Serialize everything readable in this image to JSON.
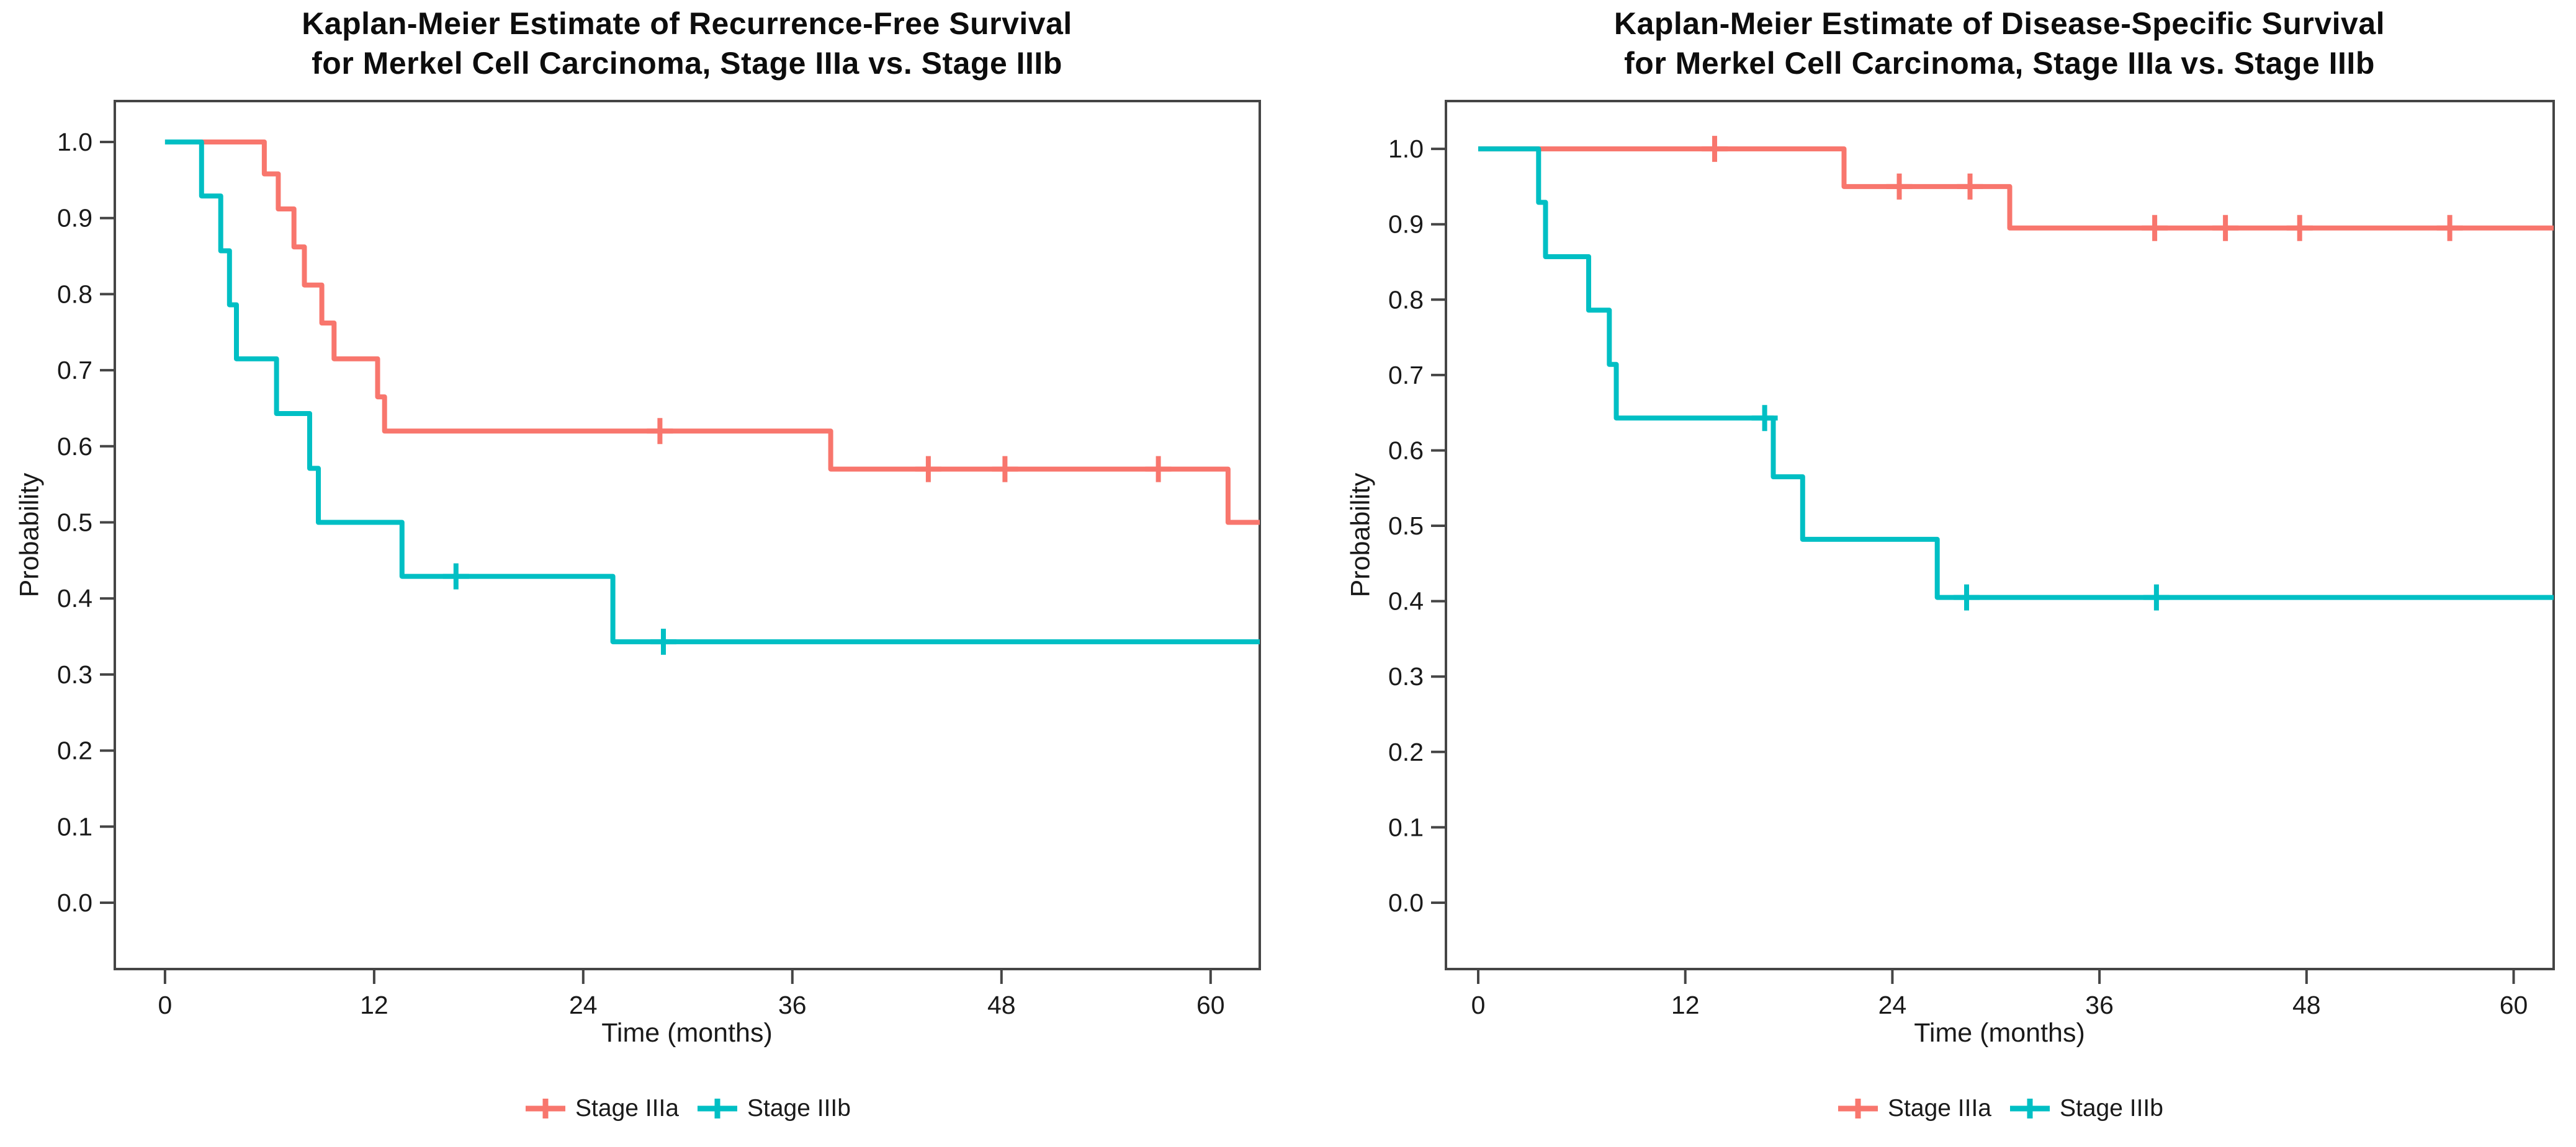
{
  "figure": {
    "background": "#ffffff",
    "description_colors": {
      "stage_iiia": "#F8766D",
      "stage_iiib": "#00BFC4",
      "axis_box": "#454545",
      "text": "#1a1a1a"
    }
  },
  "legend": {
    "items": [
      {
        "label": "Stage IIIa",
        "color": "#F8766D"
      },
      {
        "label": "Stage IIIb",
        "color": "#00BFC4"
      }
    ]
  },
  "chart_data": [
    {
      "type": "line",
      "subtype": "kaplan-meier-step",
      "title_line1": "Kaplan-Meier Estimate of Recurrence-Free Survival",
      "title_line2": "for Merkel Cell Carcinoma, Stage IIIa vs. Stage IIIb",
      "xlabel": "Time (months)",
      "ylabel": "Probability",
      "grid": false,
      "legend_position": "bottom-center",
      "xlim": [
        -2.88,
        62.82
      ],
      "ylim": [
        -0.0872,
        1.0538
      ],
      "xticks": [
        [
          0,
          "0"
        ],
        [
          12,
          "12"
        ],
        [
          24,
          "24"
        ],
        [
          36,
          "36"
        ],
        [
          48,
          "48"
        ],
        [
          60,
          "60"
        ]
      ],
      "yticks": [
        [
          1.0,
          "1.0"
        ],
        [
          0.9,
          "0.9"
        ],
        [
          0.8,
          "0.8"
        ],
        [
          0.7,
          "0.7"
        ],
        [
          0.6,
          "0.6"
        ],
        [
          0.5,
          "0.5"
        ],
        [
          0.4,
          "0.4"
        ],
        [
          0.3,
          "0.3"
        ],
        [
          0.2,
          "0.2"
        ],
        [
          0.1,
          "0.1"
        ],
        [
          0.0,
          "0.0"
        ]
      ],
      "series": [
        {
          "name": "Stage IIIa",
          "color": "#F8766D",
          "start": [
            0,
            1.0
          ],
          "steps": [
            [
              5.7,
              0.958
            ],
            [
              6.5,
              0.912
            ],
            [
              7.4,
              0.862
            ],
            [
              8.0,
              0.812
            ],
            [
              9.0,
              0.762
            ],
            [
              9.7,
              0.715
            ],
            [
              12.2,
              0.665
            ],
            [
              12.6,
              0.62
            ],
            [
              38.2,
              0.57
            ],
            [
              61.0,
              0.5
            ]
          ],
          "end_time": 62.82,
          "censors": [
            [
              28.4,
              0.62
            ],
            [
              43.8,
              0.57
            ],
            [
              48.2,
              0.57
            ],
            [
              57.0,
              0.57
            ]
          ]
        },
        {
          "name": "Stage IIIb",
          "color": "#00BFC4",
          "start": [
            0,
            1.0
          ],
          "steps": [
            [
              2.1,
              0.929
            ],
            [
              3.2,
              0.857
            ],
            [
              3.7,
              0.786
            ],
            [
              4.1,
              0.715
            ],
            [
              6.4,
              0.643
            ],
            [
              8.3,
              0.571
            ],
            [
              8.8,
              0.5
            ],
            [
              13.6,
              0.429
            ],
            [
              25.7,
              0.343
            ]
          ],
          "end_time": 62.82,
          "censors": [
            [
              16.7,
              0.429
            ],
            [
              28.6,
              0.343
            ]
          ]
        }
      ]
    },
    {
      "type": "line",
      "subtype": "kaplan-meier-step",
      "title_line1": "Kaplan-Meier Estimate of Disease-Specific Survival",
      "title_line2": "for Merkel Cell Carcinoma, Stage IIIa vs. Stage IIIb",
      "xlabel": "Time (months)",
      "ylabel": "Probability",
      "grid": false,
      "legend_position": "bottom-center",
      "xlim": [
        -1.87,
        62.32
      ],
      "ylim": [
        -0.088,
        1.0634
      ],
      "xticks": [
        [
          0,
          "0"
        ],
        [
          12,
          "12"
        ],
        [
          24,
          "24"
        ],
        [
          36,
          "36"
        ],
        [
          48,
          "48"
        ],
        [
          60,
          "60"
        ]
      ],
      "yticks": [
        [
          1.0,
          "1.0"
        ],
        [
          0.9,
          "0.9"
        ],
        [
          0.8,
          "0.8"
        ],
        [
          0.7,
          "0.7"
        ],
        [
          0.6,
          "0.6"
        ],
        [
          0.5,
          "0.5"
        ],
        [
          0.4,
          "0.4"
        ],
        [
          0.3,
          "0.3"
        ],
        [
          0.2,
          "0.2"
        ],
        [
          0.1,
          "0.1"
        ],
        [
          0.0,
          "0.0"
        ]
      ],
      "series": [
        {
          "name": "Stage IIIa",
          "color": "#F8766D",
          "start": [
            0,
            1.0
          ],
          "steps": [
            [
              21.2,
              0.95
            ],
            [
              30.8,
              0.895
            ]
          ],
          "end_time": 62.32,
          "censors": [
            [
              13.7,
              1.0
            ],
            [
              24.4,
              0.95
            ],
            [
              28.5,
              0.95
            ],
            [
              39.2,
              0.895
            ],
            [
              43.3,
              0.895
            ],
            [
              47.6,
              0.895
            ],
            [
              56.3,
              0.895
            ]
          ]
        },
        {
          "name": "Stage IIIb",
          "color": "#00BFC4",
          "start": [
            0,
            1.0
          ],
          "steps": [
            [
              3.5,
              0.929
            ],
            [
              3.9,
              0.857
            ],
            [
              6.4,
              0.786
            ],
            [
              7.6,
              0.714
            ],
            [
              8.0,
              0.643
            ],
            [
              17.1,
              0.565
            ],
            [
              18.8,
              0.482
            ],
            [
              26.6,
              0.405
            ]
          ],
          "end_time": 62.32,
          "censors": [
            [
              16.6,
              0.643
            ],
            [
              28.3,
              0.405
            ],
            [
              39.3,
              0.405
            ]
          ]
        }
      ]
    }
  ]
}
